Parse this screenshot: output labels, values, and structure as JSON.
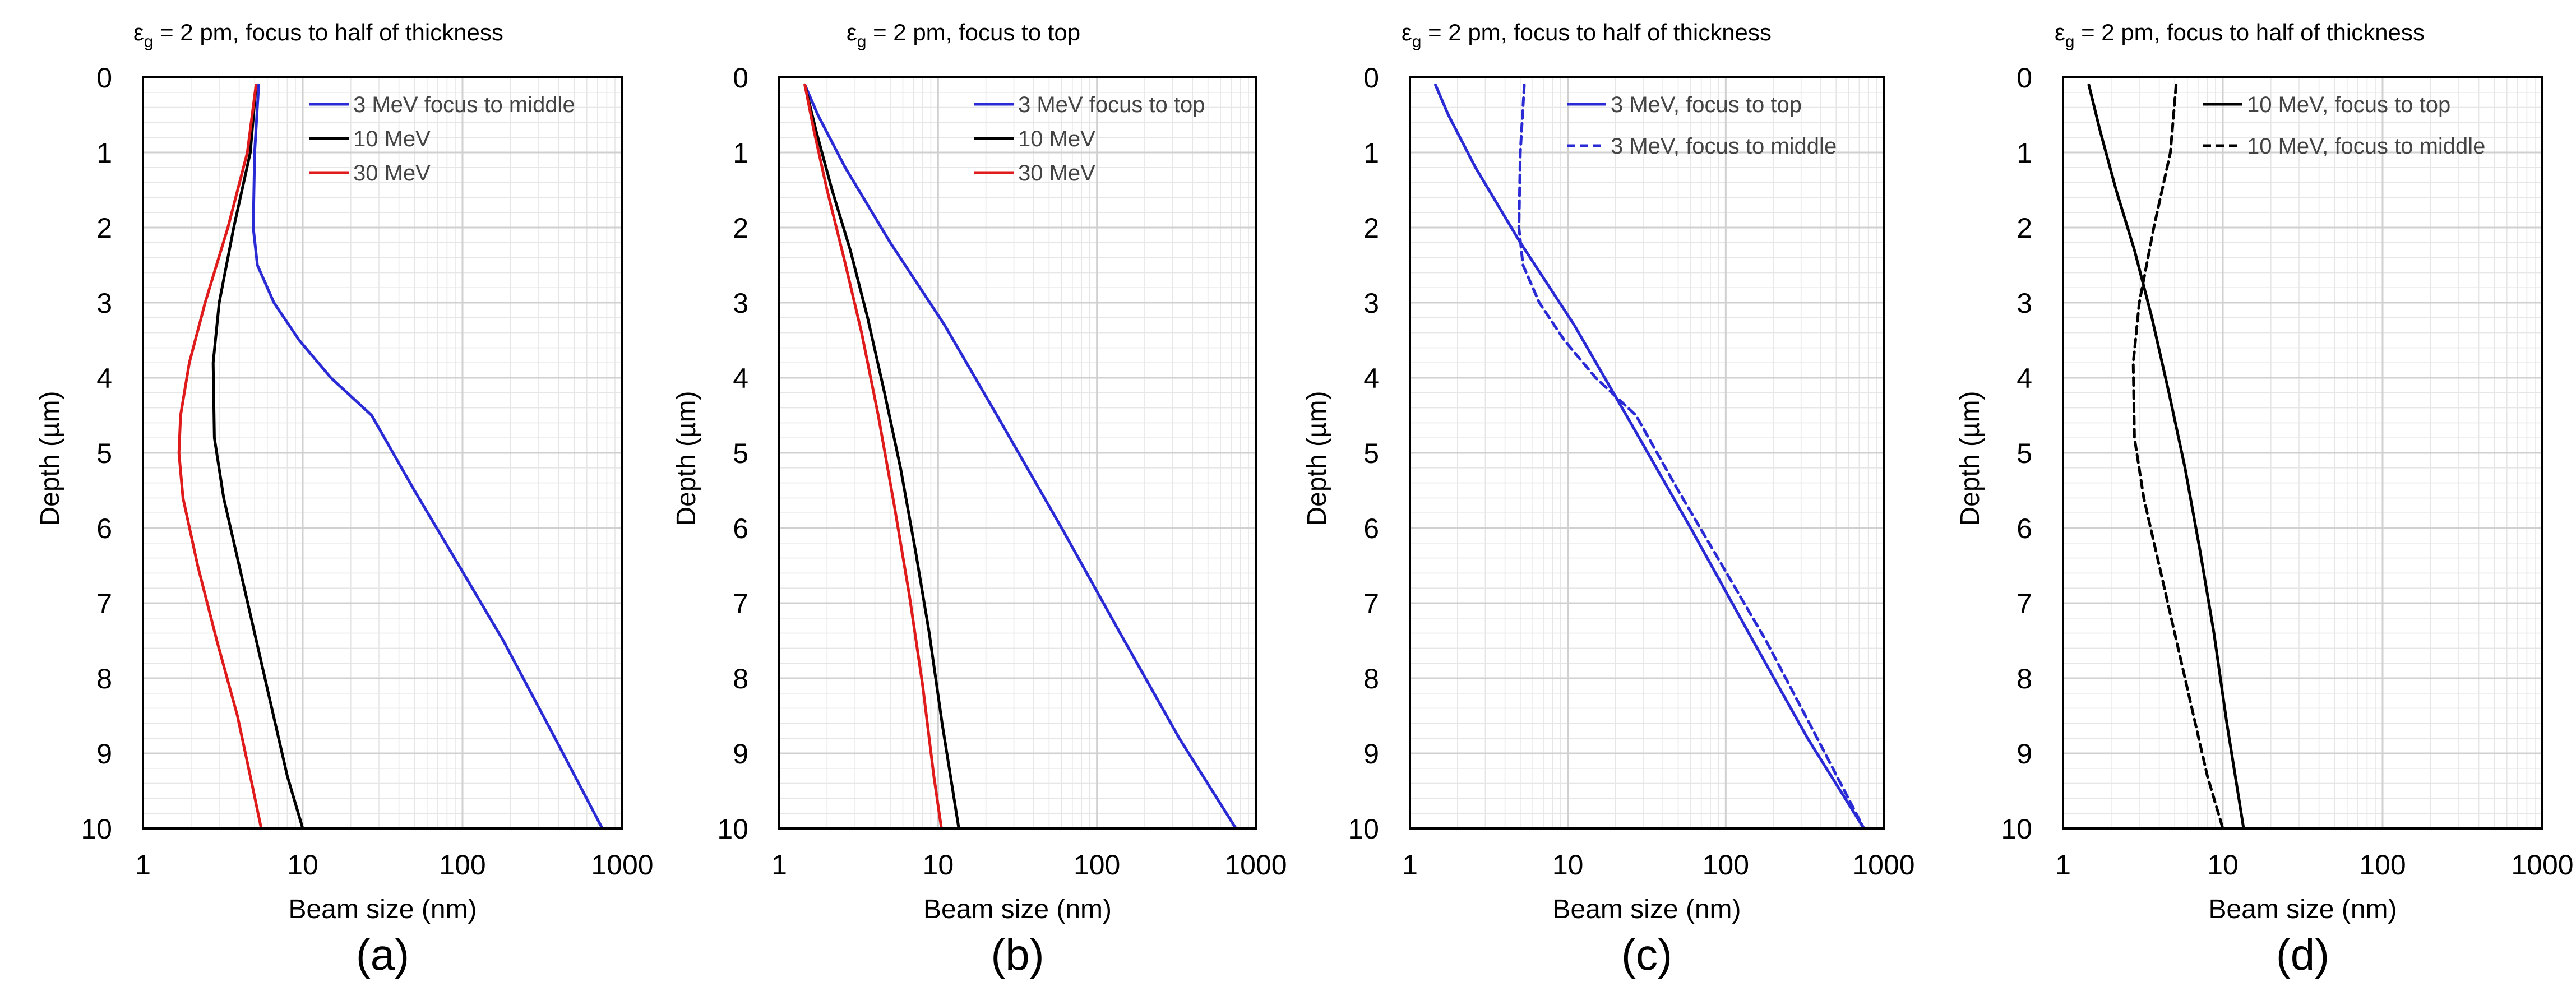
{
  "figure": {
    "panel_labels": [
      "(a)",
      "(b)",
      "(c)",
      "(d)"
    ]
  },
  "chart_data": [
    {
      "type": "line",
      "panel": "(a)",
      "title_prefix": "ε",
      "title_sub": "g",
      "title_rest": " = 2 pm, focus to half of thickness",
      "xlabel": "Beam size (nm)",
      "ylabel": "Depth  (µm)",
      "xscale": "log",
      "xlim": [
        1,
        1000
      ],
      "ylim": [
        0,
        10
      ],
      "y_inverted": true,
      "xticks": [
        "1",
        "10",
        "100",
        "1000"
      ],
      "yticks": [
        "0",
        "1",
        "2",
        "3",
        "4",
        "5",
        "6",
        "7",
        "8",
        "9",
        "10"
      ],
      "grid": true,
      "legend_position": "top-right",
      "series": [
        {
          "name": "3 MeV focus to middle",
          "color": "#2b2bd6",
          "dash": false,
          "x": [
            5.3,
            5.0,
            4.9,
            5.2,
            6.6,
            9.5,
            15,
            27,
            50,
            95,
            180,
            380,
            750
          ],
          "y": [
            0.1,
            1.0,
            2.0,
            2.5,
            3.0,
            3.5,
            4.0,
            4.5,
            5.5,
            6.5,
            7.5,
            8.8,
            10.0
          ]
        },
        {
          "name": "10 MeV",
          "color": "#000000",
          "dash": false,
          "x": [
            5.1,
            4.7,
            3.7,
            3.0,
            2.75,
            2.8,
            3.2,
            3.9,
            5.0,
            6.4,
            8.0,
            10.0
          ],
          "y": [
            0.1,
            1.0,
            2.0,
            3.0,
            3.8,
            4.8,
            5.6,
            6.4,
            7.4,
            8.4,
            9.3,
            10.0
          ]
        },
        {
          "name": "30 MeV",
          "color": "#e01b1b",
          "dash": false,
          "x": [
            5.1,
            4.5,
            3.4,
            2.45,
            1.95,
            1.72,
            1.68,
            1.78,
            2.2,
            2.9,
            3.9,
            4.8,
            5.5
          ],
          "y": [
            0.1,
            1.0,
            2.0,
            3.0,
            3.8,
            4.5,
            5.0,
            5.6,
            6.5,
            7.5,
            8.5,
            9.4,
            10.0
          ]
        }
      ]
    },
    {
      "type": "line",
      "panel": "(b)",
      "title_prefix": "ε",
      "title_sub": "g",
      "title_rest": " = 2 pm, focus to top",
      "xlabel": "Beam size (nm)",
      "ylabel": "Depth  (µm)",
      "xscale": "log",
      "xlim": [
        1,
        1000
      ],
      "ylim": [
        0,
        10
      ],
      "y_inverted": true,
      "xticks": [
        "1",
        "10",
        "100",
        "1000"
      ],
      "yticks": [
        "0",
        "1",
        "2",
        "3",
        "4",
        "5",
        "6",
        "7",
        "8",
        "9",
        "10"
      ],
      "grid": true,
      "legend_position": "top-right",
      "series": [
        {
          "name": "3 MeV focus to top",
          "color": "#2b2bd6",
          "dash": false,
          "x": [
            1.45,
            1.75,
            2.6,
            5.0,
            11,
            25,
            60,
            140,
            330,
            750
          ],
          "y": [
            0.1,
            0.5,
            1.2,
            2.2,
            3.3,
            4.6,
            6.0,
            7.4,
            8.8,
            10.0
          ]
        },
        {
          "name": "10 MeV",
          "color": "#000000",
          "dash": false,
          "x": [
            1.45,
            1.7,
            2.15,
            2.8,
            3.6,
            4.6,
            5.8,
            7.2,
            8.8,
            10.6,
            12.6,
            13.5
          ],
          "y": [
            0.1,
            0.7,
            1.5,
            2.3,
            3.2,
            4.2,
            5.2,
            6.3,
            7.4,
            8.6,
            9.6,
            10.0
          ]
        },
        {
          "name": "30 MeV",
          "color": "#e01b1b",
          "dash": false,
          "x": [
            1.45,
            1.65,
            2.0,
            2.55,
            3.3,
            4.2,
            5.3,
            6.6,
            8.0,
            9.4,
            10.5
          ],
          "y": [
            0.1,
            0.7,
            1.5,
            2.4,
            3.4,
            4.5,
            5.7,
            6.9,
            8.1,
            9.3,
            10.0
          ]
        }
      ]
    },
    {
      "type": "line",
      "panel": "(c)",
      "title_prefix": "ε",
      "title_sub": "g",
      "title_rest": " = 2 pm, focus to half of thickness",
      "xlabel": "Beam size (nm)",
      "ylabel": "Depth  (µm)",
      "xscale": "log",
      "xlim": [
        1,
        1000
      ],
      "ylim": [
        0,
        10
      ],
      "y_inverted": true,
      "xticks": [
        "1",
        "10",
        "100",
        "1000"
      ],
      "yticks": [
        "0",
        "1",
        "2",
        "3",
        "4",
        "5",
        "6",
        "7",
        "8",
        "9",
        "10"
      ],
      "grid": true,
      "legend_position": "top-right",
      "series": [
        {
          "name": "3 MeV, focus to top",
          "color": "#2b2bd6",
          "dash": false,
          "x": [
            1.45,
            1.75,
            2.6,
            5.0,
            11,
            25,
            60,
            140,
            330,
            750
          ],
          "y": [
            0.1,
            0.5,
            1.2,
            2.2,
            3.3,
            4.6,
            6.0,
            7.4,
            8.8,
            10.0
          ]
        },
        {
          "name": "3 MeV, focus to middle",
          "color": "#2b2bd6",
          "dash": true,
          "x": [
            5.3,
            5.0,
            4.9,
            5.2,
            6.6,
            9.5,
            15,
            27,
            50,
            95,
            180,
            380,
            750
          ],
          "y": [
            0.1,
            1.0,
            2.0,
            2.5,
            3.0,
            3.5,
            4.0,
            4.5,
            5.5,
            6.5,
            7.5,
            8.8,
            10.0
          ]
        }
      ]
    },
    {
      "type": "line",
      "panel": "(d)",
      "title_prefix": "ε",
      "title_sub": "g",
      "title_rest": " = 2 pm, focus to half of thickness",
      "xlabel": "Beam size (nm)",
      "ylabel": "Depth  (µm)",
      "xscale": "log",
      "xlim": [
        1,
        1000
      ],
      "ylim": [
        0,
        10
      ],
      "y_inverted": true,
      "xticks": [
        "1",
        "10",
        "100",
        "1000"
      ],
      "yticks": [
        "0",
        "1",
        "2",
        "3",
        "4",
        "5",
        "6",
        "7",
        "8",
        "9",
        "10"
      ],
      "grid": true,
      "legend_position": "top-right",
      "series": [
        {
          "name": "10 MeV, focus to top",
          "color": "#000000",
          "dash": false,
          "x": [
            1.45,
            1.7,
            2.15,
            2.8,
            3.6,
            4.6,
            5.8,
            7.2,
            8.8,
            10.6,
            12.6,
            13.5
          ],
          "y": [
            0.1,
            0.7,
            1.5,
            2.3,
            3.2,
            4.2,
            5.2,
            6.3,
            7.4,
            8.6,
            9.6,
            10.0
          ]
        },
        {
          "name": "10 MeV, focus to middle",
          "color": "#000000",
          "dash": true,
          "x": [
            5.1,
            4.7,
            3.7,
            3.0,
            2.75,
            2.8,
            3.2,
            3.9,
            5.0,
            6.4,
            8.0,
            10.0
          ],
          "y": [
            0.1,
            1.0,
            2.0,
            3.0,
            3.8,
            4.8,
            5.6,
            6.4,
            7.4,
            8.4,
            9.3,
            10.0
          ]
        }
      ]
    }
  ]
}
